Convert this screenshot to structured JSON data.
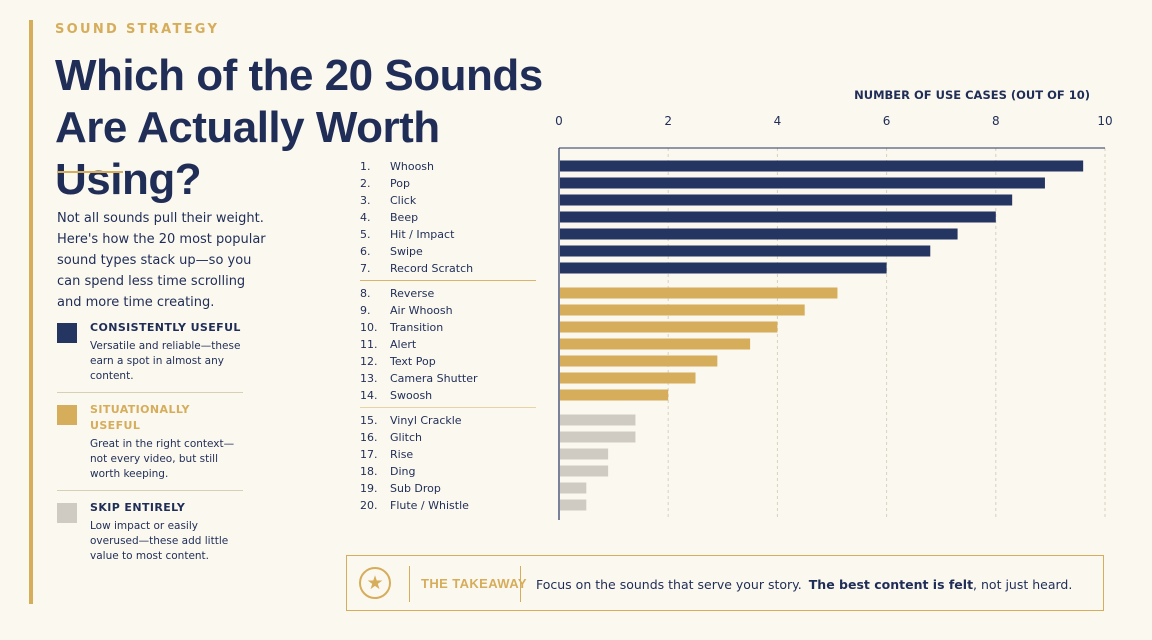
{
  "eyebrow": "SOUND STRATEGY",
  "title_line1": "Which of the 20 Sounds",
  "title_line2": "Are Actually Worth Using?",
  "intro": "Not all sounds pull their weight. Here's how the 20 most popular sound types stack up—so you can spend less time scrolling and more time creating.",
  "colors": {
    "navy": "#253561",
    "gold": "#d6ad5a",
    "gray": "#cfcbc2",
    "background": "#fbf8ef"
  },
  "legend": [
    {
      "title": "CONSISTENTLY USEFUL",
      "description": "Versatile and reliable—these earn a spot in almost any content.",
      "color": "#253561"
    },
    {
      "title": "SITUATIONALLY USEFUL",
      "description": "Great in the right context—not every video, but still worth keeping.",
      "color": "#d6ad5a"
    },
    {
      "title": "SKIP ENTIRELY",
      "description": "Low impact or easily overused—these add little value to most content.",
      "color": "#cfcbc2"
    }
  ],
  "chart_data": {
    "type": "bar",
    "orientation": "horizontal",
    "title": "NUMBER OF USE CASES (OUT OF 10)",
    "xlim": [
      0,
      10
    ],
    "xticks": [
      0,
      2,
      4,
      6,
      8,
      10
    ],
    "grid": "vertical dashed",
    "categories": [
      "Whoosh",
      "Pop",
      "Click",
      "Beep",
      "Hit / Impact",
      "Swipe",
      "Record Scratch",
      "Reverse",
      "Air Whoosh",
      "Transition",
      "Alert",
      "Text Pop",
      "Camera Shutter",
      "Swoosh",
      "Vinyl Crackle",
      "Glitch",
      "Rise",
      "Ding",
      "Sub Drop",
      "Flute / Whistle"
    ],
    "rank_labels": [
      "1.",
      "2.",
      "3.",
      "4.",
      "5.",
      "6.",
      "7.",
      "8.",
      "9.",
      "10.",
      "11.",
      "12.",
      "13.",
      "14.",
      "15.",
      "16.",
      "17.",
      "18.",
      "19.",
      "20."
    ],
    "values": [
      9.6,
      8.9,
      8.3,
      8.0,
      7.3,
      6.8,
      6.0,
      5.1,
      4.5,
      4.0,
      3.5,
      2.9,
      2.5,
      2.0,
      1.4,
      1.4,
      0.9,
      0.9,
      0.5,
      0.5
    ],
    "groups": [
      "consistently",
      "consistently",
      "consistently",
      "consistently",
      "consistently",
      "consistently",
      "consistently",
      "situationally",
      "situationally",
      "situationally",
      "situationally",
      "situationally",
      "situationally",
      "situationally",
      "skip",
      "skip",
      "skip",
      "skip",
      "skip",
      "skip"
    ]
  },
  "takeaway": {
    "label": "THE TAKEAWAY",
    "text": "Focus on the sounds that serve your story.",
    "emphasis": "The best content is felt",
    "ending": ", not just heard.",
    "icon": "star-icon"
  }
}
